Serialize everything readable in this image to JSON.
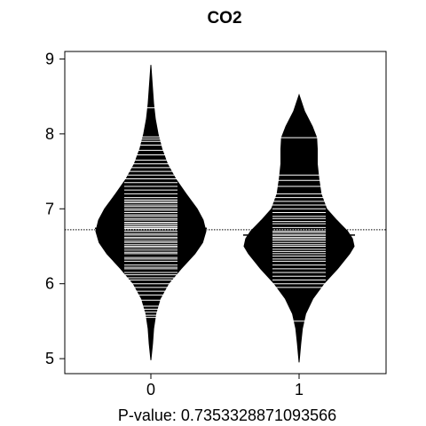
{
  "chart_data": {
    "type": "beanplot",
    "title": "CO2",
    "xlabel": "P-value: 0.7353328871093566",
    "ylabel": "",
    "categories": [
      "0",
      "1"
    ],
    "ylim": [
      4.8,
      9.1
    ],
    "yticks": [
      "5",
      "6",
      "7",
      "8",
      "9"
    ],
    "overall_mean": 6.72,
    "groups": [
      {
        "label": "0",
        "mean": 6.74,
        "density_profile": [
          [
            4.98,
            0.0
          ],
          [
            5.2,
            0.03
          ],
          [
            5.4,
            0.05
          ],
          [
            5.6,
            0.09
          ],
          [
            5.8,
            0.17
          ],
          [
            6.0,
            0.32
          ],
          [
            6.2,
            0.55
          ],
          [
            6.4,
            0.8
          ],
          [
            6.55,
            0.94
          ],
          [
            6.7,
            1.0
          ],
          [
            6.85,
            0.95
          ],
          [
            7.0,
            0.84
          ],
          [
            7.2,
            0.64
          ],
          [
            7.4,
            0.45
          ],
          [
            7.6,
            0.3
          ],
          [
            7.8,
            0.2
          ],
          [
            8.0,
            0.13
          ],
          [
            8.2,
            0.08
          ],
          [
            8.4,
            0.05
          ],
          [
            8.6,
            0.03
          ],
          [
            8.92,
            0.0
          ]
        ],
        "observations": [
          5.55,
          5.58,
          5.62,
          5.66,
          5.7,
          5.78,
          5.85,
          5.9,
          5.95,
          6.0,
          6.05,
          6.08,
          6.12,
          6.15,
          6.2,
          6.22,
          6.25,
          6.3,
          6.33,
          6.35,
          6.4,
          6.42,
          6.45,
          6.48,
          6.5,
          6.52,
          6.55,
          6.57,
          6.6,
          6.62,
          6.65,
          6.67,
          6.7,
          6.72,
          6.74,
          6.76,
          6.78,
          6.8,
          6.82,
          6.85,
          6.87,
          6.9,
          6.92,
          6.95,
          6.98,
          7.0,
          7.03,
          7.05,
          7.08,
          7.1,
          7.12,
          7.15,
          7.2,
          7.25,
          7.3,
          7.35,
          7.4,
          7.45,
          7.5,
          7.55,
          7.6,
          7.65,
          7.72,
          7.78,
          7.85,
          7.9,
          7.93,
          7.96,
          8.35
        ]
      },
      {
        "label": "1",
        "mean": 6.65,
        "density_profile": [
          [
            4.95,
            0.0
          ],
          [
            5.2,
            0.03
          ],
          [
            5.4,
            0.06
          ],
          [
            5.6,
            0.12
          ],
          [
            5.8,
            0.25
          ],
          [
            6.0,
            0.45
          ],
          [
            6.2,
            0.7
          ],
          [
            6.4,
            0.92
          ],
          [
            6.5,
            1.0
          ],
          [
            6.6,
            0.97
          ],
          [
            6.7,
            0.88
          ],
          [
            6.85,
            0.68
          ],
          [
            7.0,
            0.5
          ],
          [
            7.2,
            0.4
          ],
          [
            7.4,
            0.36
          ],
          [
            7.6,
            0.33
          ],
          [
            7.8,
            0.33
          ],
          [
            7.95,
            0.32
          ],
          [
            8.1,
            0.24
          ],
          [
            8.3,
            0.1
          ],
          [
            8.52,
            0.0
          ]
        ],
        "observations": [
          5.5,
          5.95,
          6.0,
          6.05,
          6.1,
          6.15,
          6.2,
          6.25,
          6.3,
          6.33,
          6.37,
          6.4,
          6.43,
          6.46,
          6.5,
          6.52,
          6.55,
          6.58,
          6.6,
          6.62,
          6.65,
          6.68,
          6.7,
          6.72,
          6.75,
          6.8,
          6.83,
          6.87,
          6.9,
          6.95,
          7.0,
          7.05,
          7.1,
          7.15,
          7.2,
          7.3,
          7.38,
          7.45,
          7.95
        ]
      }
    ],
    "colors": {
      "bean": "#000000",
      "line": "#ffffff",
      "frame": "#000000"
    }
  }
}
